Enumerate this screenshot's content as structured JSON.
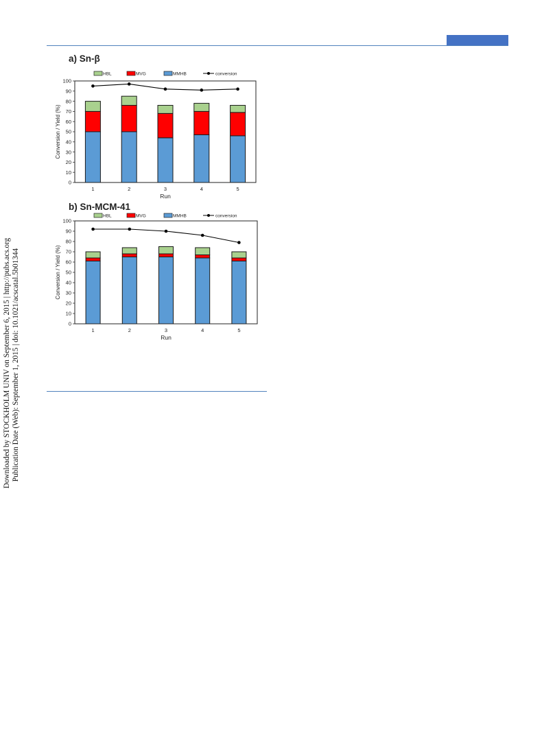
{
  "side_note": {
    "line1": "Downloaded by STOCKHOLM UNIV on September 6, 2015 | http://pubs.acs.org",
    "line2": "Publication Date (Web): September 1, 2015 | doi: 10.1021/acscatal.5b01344"
  },
  "colors": {
    "HBL": "#a9d18e",
    "MVG": "#ff0000",
    "MMHB": "#5b9bd5",
    "conversion": "#000000",
    "rule": "#4f81bd"
  },
  "chart_data": [
    {
      "type": "bar",
      "stacked": true,
      "title": "a) Sn-β",
      "xlabel": "Run",
      "ylabel": "Conversion / Yield (%)",
      "ylim": [
        0,
        100
      ],
      "yticks": [
        0,
        10,
        20,
        30,
        40,
        50,
        60,
        70,
        80,
        90,
        100
      ],
      "categories": [
        "1",
        "2",
        "3",
        "4",
        "5"
      ],
      "legend": [
        "HBL",
        "MVG",
        "MMHB",
        "conversion"
      ],
      "legend_position": "top",
      "series": [
        {
          "name": "MMHB",
          "values": [
            50,
            50,
            44,
            47,
            46
          ]
        },
        {
          "name": "MVG",
          "values": [
            20,
            26,
            24,
            23,
            23
          ]
        },
        {
          "name": "HBL",
          "values": [
            10,
            9,
            8,
            8,
            7
          ]
        }
      ],
      "line": {
        "name": "conversion",
        "values": [
          95,
          97,
          92,
          91,
          92
        ]
      }
    },
    {
      "type": "bar",
      "stacked": true,
      "title": "b) Sn-MCM-41",
      "xlabel": "Run",
      "ylabel": "Conversion / Yield (%)",
      "ylim": [
        0,
        100
      ],
      "yticks": [
        0,
        10,
        20,
        30,
        40,
        50,
        60,
        70,
        80,
        90,
        100
      ],
      "categories": [
        "1",
        "2",
        "3",
        "4",
        "5"
      ],
      "legend": [
        "HBL",
        "MVG",
        "MMHB",
        "conversion"
      ],
      "legend_position": "top",
      "series": [
        {
          "name": "MMHB",
          "values": [
            61,
            65,
            65,
            64,
            61
          ]
        },
        {
          "name": "MVG",
          "values": [
            3,
            3,
            3,
            3,
            3
          ]
        },
        {
          "name": "HBL",
          "values": [
            6,
            6,
            7,
            7,
            6
          ]
        }
      ],
      "line": {
        "name": "conversion",
        "values": [
          92,
          92,
          90,
          86,
          79
        ]
      }
    }
  ]
}
